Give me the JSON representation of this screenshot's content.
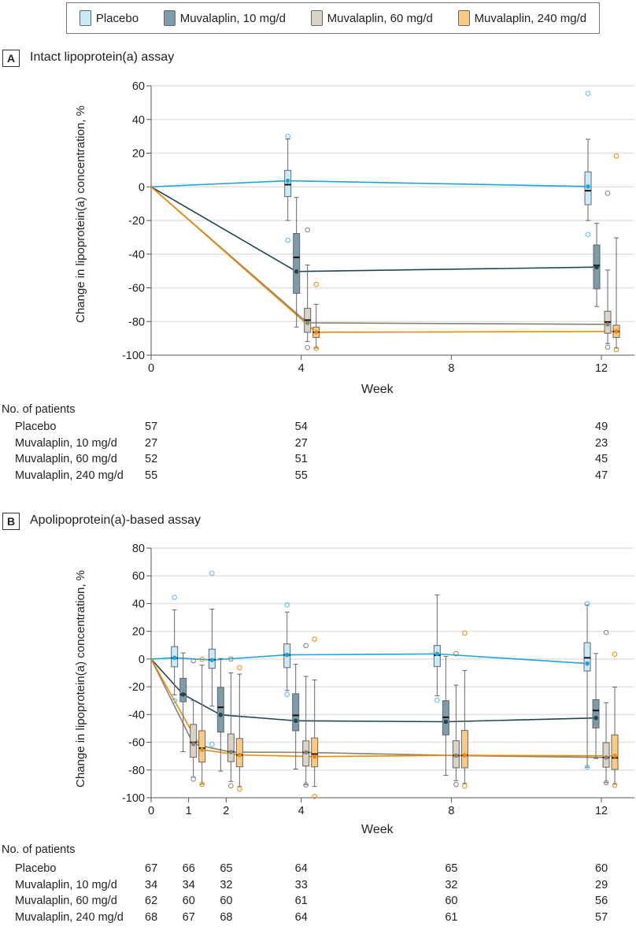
{
  "legend": [
    {
      "label": "Placebo",
      "fill": "#c9eaf9",
      "line": "#19a6e1"
    },
    {
      "label": "Muvalaplin, 10 mg/d",
      "fill": "#7c9cad",
      "line": "#1e4756"
    },
    {
      "label": "Muvalaplin, 60 mg/d",
      "fill": "#dad4c6",
      "line": "#8a8273"
    },
    {
      "label": "Muvalaplin, 240 mg/d",
      "fill": "#fdca80",
      "line": "#ef8a00"
    }
  ],
  "panels": [
    {
      "letter": "A",
      "title": "Intact lipoprotein(a) assay",
      "ylabel": "Change in lipoprotein(a) concentration, %",
      "xlabel": "Week",
      "patients": {
        "heading": "No. of patients",
        "weeks": [
          0,
          4,
          12
        ],
        "rows": [
          {
            "label": "Placebo",
            "values": [
              "57",
              "54",
              "49"
            ]
          },
          {
            "label": "Muvalaplin, 10 mg/d",
            "values": [
              "27",
              "27",
              "23"
            ]
          },
          {
            "label": "Muvalaplin, 60 mg/d",
            "values": [
              "52",
              "51",
              "45"
            ]
          },
          {
            "label": "Muvalaplin, 240 mg/d",
            "values": [
              "55",
              "55",
              "47"
            ]
          }
        ]
      }
    },
    {
      "letter": "B",
      "title": "Apolipoprotein(a)-based assay",
      "ylabel": "Change in lipoprotein(a) concentration, %",
      "xlabel": "Week",
      "patients": {
        "heading": "No. of patients",
        "weeks": [
          0,
          1,
          2,
          4,
          8,
          12
        ],
        "rows": [
          {
            "label": "Placebo",
            "values": [
              "67",
              "66",
              "65",
              "64",
              "65",
              "60"
            ]
          },
          {
            "label": "Muvalaplin, 10 mg/d",
            "values": [
              "34",
              "34",
              "32",
              "33",
              "32",
              "29"
            ]
          },
          {
            "label": "Muvalaplin, 60 mg/d",
            "values": [
              "62",
              "60",
              "60",
              "61",
              "60",
              "56"
            ]
          },
          {
            "label": "Muvalaplin, 240 mg/d",
            "values": [
              "68",
              "67",
              "68",
              "64",
              "61",
              "57"
            ]
          }
        ]
      }
    }
  ],
  "chart_data": [
    {
      "type": "box",
      "title": "Intact lipoprotein(a) assay",
      "xlabel": "Week",
      "ylabel": "Change in lipoprotein(a) concentration, %",
      "xticks": [
        0,
        4,
        8,
        12
      ],
      "ylim": [
        -100,
        60
      ],
      "yticks": [
        60,
        40,
        20,
        0,
        -20,
        -40,
        -60,
        -80,
        -100
      ],
      "grid": true,
      "legend": "top",
      "baseline": {
        "week": 0,
        "value": 0
      },
      "series": [
        {
          "name": "Placebo",
          "timepoints": [
            {
              "week": 4,
              "whisker_low": -20,
              "q1": -5.8,
              "median": 1.3,
              "q3": 9.8,
              "whisker_high": 28.3,
              "mean": 3.6,
              "outliers": [
                30,
                -31.7
              ]
            },
            {
              "week": 12,
              "whisker_low": -20,
              "q1": -10.6,
              "median": -2.3,
              "q3": 8.9,
              "whisker_high": 28.3,
              "mean": 0.2,
              "outliers": [
                55.5,
                -28.3
              ]
            }
          ]
        },
        {
          "name": "Muvalaplin, 10 mg/d",
          "timepoints": [
            {
              "week": 4,
              "whisker_low": -83.3,
              "q1": -63.3,
              "median": -41.9,
              "q3": -27.7,
              "whisker_high": -6.3,
              "mean": -50.3,
              "outliers": []
            },
            {
              "week": 12,
              "whisker_low": -71.1,
              "q1": -60.6,
              "median": -46.7,
              "q3": -34.5,
              "whisker_high": -21.7,
              "mean": -47.7,
              "outliers": []
            }
          ]
        },
        {
          "name": "Muvalaplin, 60 mg/d",
          "timepoints": [
            {
              "week": 4,
              "whisker_low": -91.9,
              "q1": -86.4,
              "median": -79.2,
              "q3": -72.2,
              "whisker_high": -46.4,
              "mean": -80.8,
              "outliers": [
                -25.5,
                -95.5
              ]
            },
            {
              "week": 12,
              "whisker_low": -93.1,
              "q1": -87,
              "median": -80.3,
              "q3": -73.9,
              "whisker_high": -49.4,
              "mean": -81.7,
              "outliers": [
                -3.8,
                -95.3
              ]
            }
          ]
        },
        {
          "name": "Muvalaplin, 240 mg/d",
          "timepoints": [
            {
              "week": 4,
              "whisker_low": -95.8,
              "q1": -89.5,
              "median": -86.4,
              "q3": -83.3,
              "whisker_high": -69.8,
              "mean": -86.4,
              "outliers": [
                -58,
                -96
              ]
            },
            {
              "week": 12,
              "whisker_low": -95.8,
              "q1": -89.5,
              "median": -85.9,
              "q3": -82.2,
              "whisker_high": -30.3,
              "mean": -85.9,
              "outliers": [
                18.3,
                -96.6
              ]
            }
          ]
        }
      ]
    },
    {
      "type": "box",
      "title": "Apolipoprotein(a)-based assay",
      "xlabel": "Week",
      "ylabel": "Change in lipoprotein(a) concentration, %",
      "xticks": [
        0,
        1,
        2,
        4,
        8,
        12
      ],
      "ylim": [
        -100,
        80
      ],
      "yticks": [
        80,
        60,
        40,
        20,
        0,
        -20,
        -40,
        -60,
        -80,
        -100
      ],
      "grid": true,
      "legend": "top",
      "baseline": {
        "week": 0,
        "value": 0
      },
      "series": [
        {
          "name": "Placebo",
          "timepoints": [
            {
              "week": 1,
              "whisker_low": -25.8,
              "q1": -5.6,
              "median": 0.7,
              "q3": 9,
              "whisker_high": 35.5,
              "mean": 0.9,
              "outliers": [
                44.5,
                -30
              ]
            },
            {
              "week": 2,
              "whisker_low": -33.9,
              "q1": -6.7,
              "median": -0.5,
              "q3": 7.2,
              "whisker_high": 36,
              "mean": -0.7,
              "outliers": [
                61.9,
                -61.5
              ]
            },
            {
              "week": 4,
              "whisker_low": -22.7,
              "q1": -6.2,
              "median": 3,
              "q3": 10.9,
              "whisker_high": 33.9,
              "mean": 3,
              "outliers": [
                39,
                -25.5
              ]
            },
            {
              "week": 8,
              "whisker_low": -26.5,
              "q1": -5.4,
              "median": 2.8,
              "q3": 9.8,
              "whisker_high": 46.2,
              "mean": 3.7,
              "outliers": [
                -29.7
              ]
            },
            {
              "week": 12,
              "whisker_low": -78,
              "q1": -8.6,
              "median": 0.9,
              "q3": 11.8,
              "whisker_high": 39,
              "mean": -3.2,
              "outliers": [
                39.9,
                -78
              ]
            }
          ]
        },
        {
          "name": "Muvalaplin, 10 mg/d",
          "timepoints": [
            {
              "week": 1,
              "whisker_low": -66.8,
              "q1": -30.8,
              "median": -25.5,
              "q3": -13.9,
              "whisker_high": 4.4,
              "mean": -25.5,
              "outliers": []
            },
            {
              "week": 2,
              "whisker_low": -80.8,
              "q1": -52.7,
              "median": -34.8,
              "q3": -20.4,
              "whisker_high": 0.4,
              "mean": -40.2,
              "outliers": []
            },
            {
              "week": 4,
              "whisker_low": -79.3,
              "q1": -51.7,
              "median": -40.6,
              "q3": -25,
              "whisker_high": -3.7,
              "mean": -44.5,
              "outliers": []
            },
            {
              "week": 8,
              "whisker_low": -83.8,
              "q1": -54.7,
              "median": -42,
              "q3": -30,
              "whisker_high": 1.9,
              "mean": -45.2,
              "outliers": []
            },
            {
              "week": 12,
              "whisker_low": -71.7,
              "q1": -49.7,
              "median": -37.1,
              "q3": -29.3,
              "whisker_high": 4,
              "mean": -42.5,
              "outliers": []
            }
          ]
        },
        {
          "name": "Muvalaplin, 60 mg/d",
          "timepoints": [
            {
              "week": 1,
              "whisker_low": -85.1,
              "q1": -70.8,
              "median": -60.1,
              "q3": -47.1,
              "whisker_high": -29.9,
              "mean": -61.3,
              "outliers": [
                -1.2,
                -86.6
              ]
            },
            {
              "week": 2,
              "whisker_low": -88.2,
              "q1": -74,
              "median": -66.8,
              "q3": -54,
              "whisker_high": -10,
              "mean": -67.1,
              "outliers": [
                0,
                -91.4
              ]
            },
            {
              "week": 4,
              "whisker_low": -90.7,
              "q1": -77.2,
              "median": -67.3,
              "q3": -59,
              "whisker_high": -12.5,
              "mean": -67.3,
              "outliers": [
                9.8,
                -90.9
              ]
            },
            {
              "week": 8,
              "whisker_low": -87.7,
              "q1": -78.4,
              "median": -69.6,
              "q3": -58.9,
              "whisker_high": -18.8,
              "mean": -69.6,
              "outliers": [
                3.9,
                -90.5
              ]
            },
            {
              "week": 12,
              "whisker_low": -89.1,
              "q1": -78,
              "median": -71,
              "q3": -60.3,
              "whisker_high": -31.5,
              "mean": -71,
              "outliers": [
                19.2,
                -89.1
              ]
            }
          ]
        },
        {
          "name": "Muvalaplin, 240 mg/d",
          "timepoints": [
            {
              "week": 1,
              "whisker_low": -90.2,
              "q1": -74.3,
              "median": -64.3,
              "q3": -51.7,
              "whisker_high": -4.4,
              "mean": -65.4,
              "outliers": [
                -0.2,
                -90.2
              ]
            },
            {
              "week": 2,
              "whisker_low": -91.9,
              "q1": -77.7,
              "median": -69.2,
              "q3": -57.3,
              "whisker_high": -10.9,
              "mean": -69.2,
              "outliers": [
                -6.2,
                -93.7
              ]
            },
            {
              "week": 4,
              "whisker_low": -91.9,
              "q1": -77.7,
              "median": -68.5,
              "q3": -56.9,
              "whisker_high": -15.1,
              "mean": -70.3,
              "outliers": [
                14.4,
                -99
              ]
            },
            {
              "week": 8,
              "whisker_low": -89.6,
              "q1": -78.4,
              "median": -69.4,
              "q3": -51.5,
              "whisker_high": -8.3,
              "mean": -69.4,
              "outliers": [
                18.8,
                -91.6
              ]
            },
            {
              "week": 12,
              "whisker_low": -90.2,
              "q1": -79.6,
              "median": -71.2,
              "q3": -54.7,
              "whisker_high": -20.2,
              "mean": -69.8,
              "outliers": [
                3.5,
                -91
              ]
            }
          ]
        }
      ]
    }
  ]
}
